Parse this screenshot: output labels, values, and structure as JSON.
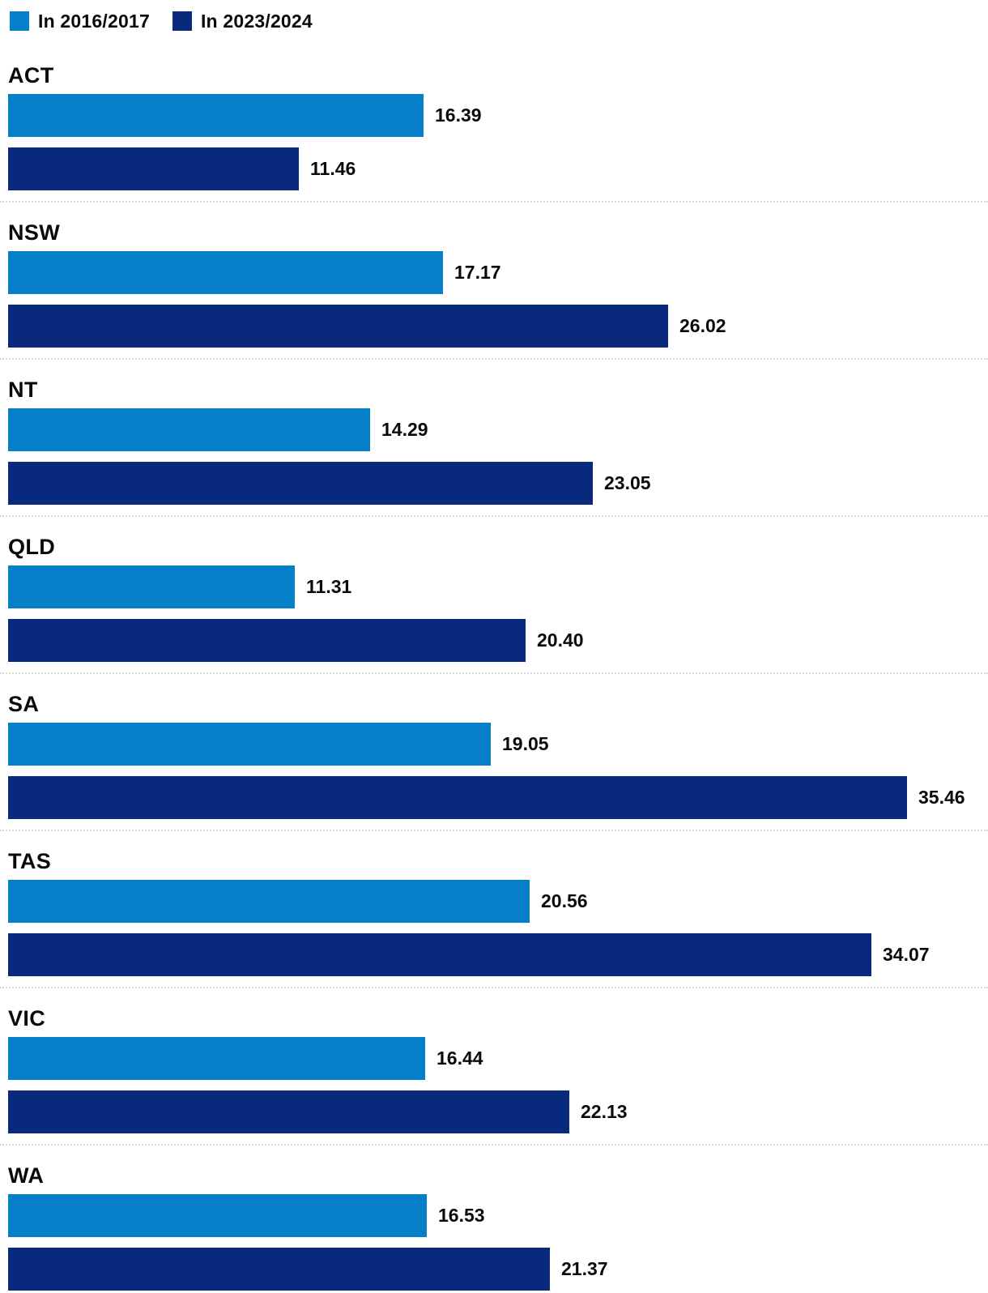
{
  "legend": {
    "items": [
      {
        "label": "In 2016/2017",
        "color": "#0580c8"
      },
      {
        "label": "In 2023/2024",
        "color": "#09297d"
      }
    ]
  },
  "chart_data": {
    "type": "bar",
    "orientation": "horizontal",
    "categories": [
      "ACT",
      "NSW",
      "NT",
      "QLD",
      "SA",
      "TAS",
      "VIC",
      "WA"
    ],
    "series": [
      {
        "name": "In 2016/2017",
        "color": "#0580c8",
        "values": [
          16.39,
          17.17,
          14.29,
          11.31,
          19.05,
          20.56,
          16.44,
          16.53
        ],
        "value_labels": [
          "16.39",
          "17.17",
          "14.29",
          "11.31",
          "19.05",
          "20.56",
          "16.44",
          "16.53"
        ]
      },
      {
        "name": "In 2023/2024",
        "color": "#09297d",
        "values": [
          11.46,
          26.02,
          23.05,
          20.4,
          35.46,
          34.07,
          22.13,
          21.37
        ],
        "value_labels": [
          "11.46",
          "26.02",
          "23.05",
          "20.40",
          "35.46",
          "34.07",
          "22.13",
          "21.37"
        ]
      }
    ],
    "xlim": [
      0,
      35.46
    ],
    "value_label_position": "right-of-bar",
    "legend_position": "top-left",
    "grid": false,
    "separator_color": "#d8d8d8"
  }
}
